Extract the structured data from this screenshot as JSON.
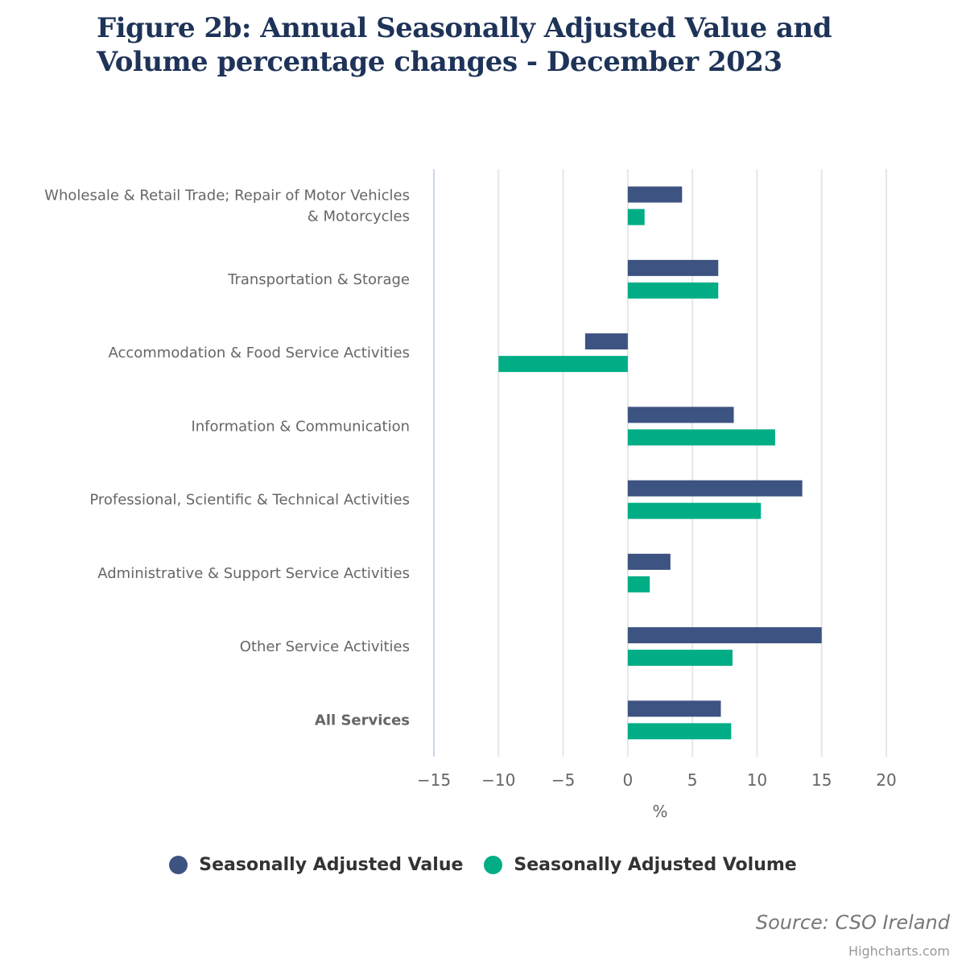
{
  "title": "Figure 2b: Annual Seasonally Adjusted Value and Volume percentage changes - December 2023",
  "source": "Source: CSO Ireland",
  "credits": "Highcharts.com",
  "chart_data": {
    "type": "bar",
    "orientation": "horizontal",
    "title": "Figure 2b: Annual Seasonally Adjusted Value and Volume percentage changes - December 2023",
    "xlabel": "%",
    "ylabel": "",
    "xlim": [
      -15,
      20
    ],
    "xticks": [
      -15,
      -10,
      -5,
      0,
      5,
      10,
      15,
      20
    ],
    "xtick_labels": [
      "−15",
      "−10",
      "−5",
      "0",
      "5",
      "10",
      "15",
      "20"
    ],
    "grid": true,
    "legend_position": "bottom-center",
    "categories": [
      {
        "label_lines": [
          "Wholesale & Retail Trade; Repair of Motor Vehicles",
          "& Motorcycles"
        ],
        "bold": false
      },
      {
        "label_lines": [
          "Transportation & Storage"
        ],
        "bold": false
      },
      {
        "label_lines": [
          "Accommodation & Food Service Activities"
        ],
        "bold": false
      },
      {
        "label_lines": [
          "Information & Communication"
        ],
        "bold": false
      },
      {
        "label_lines": [
          "Professional, Scientific & Technical Activities"
        ],
        "bold": false
      },
      {
        "label_lines": [
          "Administrative & Support Service Activities"
        ],
        "bold": false
      },
      {
        "label_lines": [
          "Other Service Activities"
        ],
        "bold": false
      },
      {
        "label_lines": [
          "All Services"
        ],
        "bold": true
      }
    ],
    "series": [
      {
        "name": "Seasonally Adjusted Value",
        "color": "#3d5381",
        "values": [
          4.2,
          7.0,
          -3.3,
          8.2,
          13.5,
          3.3,
          15.0,
          7.2
        ]
      },
      {
        "name": "Seasonally Adjusted Volume",
        "color": "#00ad85",
        "values": [
          1.3,
          7.0,
          -10.0,
          11.4,
          10.3,
          1.7,
          8.1,
          8.0
        ]
      }
    ]
  },
  "legend": {
    "items": [
      {
        "label": "Seasonally Adjusted Value",
        "color": "#3d5381"
      },
      {
        "label": "Seasonally Adjusted Volume",
        "color": "#00ad85"
      }
    ]
  }
}
